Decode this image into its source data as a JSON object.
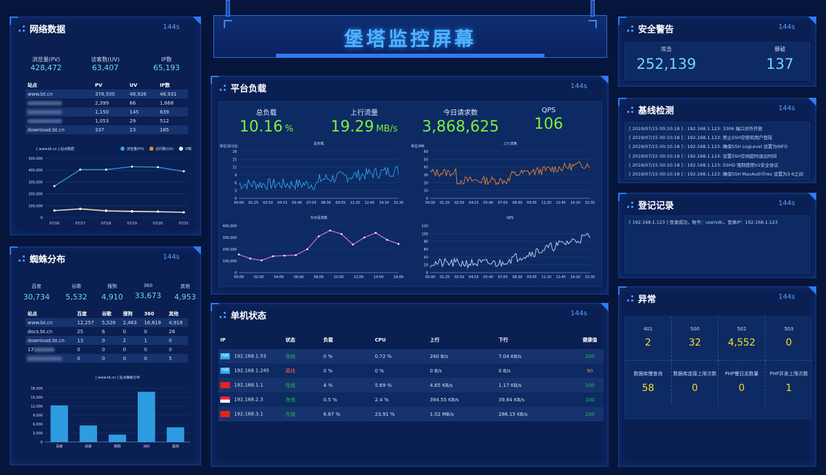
{
  "title": "堡塔监控屏幕",
  "network": {
    "title": "网络数据",
    "ago": "144s",
    "stats": [
      {
        "label": "浏览量(PV)",
        "value": "428,472"
      },
      {
        "label": "访客数(UV)",
        "value": "63,407"
      },
      {
        "label": "IP数",
        "value": "65,193"
      }
    ],
    "headers": [
      "站点",
      "PV",
      "UV",
      "IP数"
    ],
    "rows": [
      [
        "www.bt.cn",
        "378,500",
        "48,926",
        "46,931"
      ],
      [
        "",
        "2,399",
        "66",
        "1,668"
      ],
      [
        "",
        "1,150",
        "145",
        "839"
      ],
      [
        "",
        "1,053",
        "29",
        "512"
      ],
      [
        "download.bt.cn",
        "337",
        "23",
        "185"
      ]
    ],
    "chart_title": "[ www.bt.cn ] 站点数据",
    "legend": [
      "浏览量(PV)",
      "访问数(UV)",
      "IP数"
    ],
    "yticks": [
      "500,000",
      "400,000",
      "300,000",
      "200,000",
      "100,000",
      "0"
    ],
    "xticks": [
      "07/16",
      "07/17",
      "07/18",
      "07/19",
      "07/20",
      "07/21"
    ]
  },
  "spider": {
    "title": "蜘蛛分布",
    "ago": "144s",
    "stats": [
      {
        "label": "百度",
        "value": "30,734"
      },
      {
        "label": "谷歌",
        "value": "5,532"
      },
      {
        "label": "搜狗",
        "value": "4,910"
      },
      {
        "label": "360",
        "value": "33,673"
      },
      {
        "label": "其他",
        "value": "4,953"
      }
    ],
    "headers": [
      "站点",
      "百度",
      "谷歌",
      "搜狗",
      "360",
      "其他"
    ],
    "rows": [
      [
        "www.bt.cn",
        "12,257",
        "5,526",
        "2,463",
        "16,819",
        "4,918"
      ],
      [
        "docs.bt.cn",
        "25",
        "6",
        "0",
        "0",
        "28"
      ],
      [
        "download.bt.cn",
        "13",
        "0",
        "2",
        "1",
        "0"
      ],
      [
        "17",
        "0",
        "0",
        "0",
        "0",
        "0"
      ],
      [
        "",
        "0",
        "0",
        "0",
        "0",
        "5"
      ]
    ],
    "chart_title": "[ www.bt.cn ] 站点蜘蛛分布",
    "yticks": [
      "18,000",
      "15,000",
      "12,000",
      "9,000",
      "6,000",
      "3,000",
      "0"
    ],
    "categories": [
      "百度",
      "谷歌",
      "搜狗",
      "360",
      "其他"
    ]
  },
  "load": {
    "title": "平台负载",
    "ago": "144s",
    "stats": [
      {
        "label": "总负载",
        "value": "10.16",
        "unit": "%"
      },
      {
        "label": "上行流量",
        "value": "19.29",
        "unit": "MB/s"
      },
      {
        "label": "今日请求数",
        "value": "3,868,625",
        "unit": ""
      },
      {
        "label": "QPS",
        "value": "106",
        "unit": ""
      }
    ],
    "c1": {
      "title": "总负载",
      "unit": "单位/百分比",
      "yticks": [
        "18",
        "15",
        "12",
        "9",
        "6",
        "3",
        "0"
      ]
    },
    "c2": {
      "title": "上行流量",
      "unit": "单位/MB",
      "yticks": [
        "60",
        "50",
        "40",
        "30",
        "20",
        "10",
        "0"
      ]
    },
    "c3": {
      "title": "今日请求数",
      "yticks": [
        "400,000",
        "300,000",
        "200,000",
        "100,000",
        "0"
      ],
      "xticks": [
        "00:00",
        "02:00",
        "04:00",
        "06:00",
        "08:00",
        "10:00",
        "12:00",
        "14:00",
        "16:00"
      ]
    },
    "c4": {
      "title": "QPS",
      "yticks": [
        "120",
        "100",
        "80",
        "60",
        "40",
        "20",
        "0"
      ]
    },
    "time_ticks": [
      "00:00",
      "01:25",
      "02:50",
      "04:15",
      "05:40",
      "07:05",
      "08:30",
      "09:55",
      "11:20",
      "12:45",
      "14:10",
      "15:35"
    ]
  },
  "machines": {
    "title": "单机状态",
    "ago": "144s",
    "headers": [
      "IP",
      "状态",
      "负载",
      "CPU",
      "上行",
      "下行",
      "健康值"
    ],
    "rows": [
      {
        "flag": "内网",
        "ip": "192.168.1.53",
        "status": "在线",
        "load": "0 %",
        "cpu": "0.72 %",
        "up": "240 B/s",
        "down": "7.04 KB/s",
        "health": "100"
      },
      {
        "flag": "内网",
        "ip": "192.168.1.245",
        "status": "离线",
        "load": "0 %",
        "cpu": "0 %",
        "up": "0 B/s",
        "down": "0 B/s",
        "health": "90"
      },
      {
        "flag": "",
        "ip": "192.168.1.1",
        "status": "在线",
        "load": "4 %",
        "cpu": "5.69 %",
        "up": "4.65 KB/s",
        "down": "1.17 KB/s",
        "health": "100"
      },
      {
        "flag": "",
        "ip": "192.168.2.3",
        "status": "在线",
        "load": "0.5 %",
        "cpu": "2.4 %",
        "up": "394.55 KB/s",
        "down": "39.84 KB/s",
        "health": "100"
      },
      {
        "flag": "",
        "ip": "192.168.3.1",
        "status": "在线",
        "load": "6.87 %",
        "cpu": "23.91 %",
        "up": "1.02 MB/s",
        "down": "286.15 KB/s",
        "health": "100"
      }
    ]
  },
  "security": {
    "title": "安全警告",
    "ago": "144s",
    "stats": [
      {
        "label": "攻击",
        "value": "252,139"
      },
      {
        "label": "暴破",
        "value": "137"
      }
    ]
  },
  "baseline": {
    "title": "基线检测",
    "ago": "144s",
    "logs": [
      "[ 2019/07/15 00:10:18 ] : 192.168.1.123: 3306 端口对外开放",
      "[ 2019/07/15 00:10:18 ] : 192.168.1.123: 禁止SSH空密码用户登陆",
      "[ 2019/07/15 00:10:18 ] : 192.168.1.123: 确保SSH LogLevel 设置为INFO",
      "[ 2019/07/15 00:10:18 ] : 192.168.1.123: 设置SSH空闲超时退出时间",
      "[ 2019/07/15 00:10:18 ] : 192.168.1.123: SSHD 强制使用V2安全协议",
      "[ 2019/07/15 00:10:18 ] : 192.168.1.123: 确保SSH MaxAuthTries 设置为3-6之间"
    ]
  },
  "login": {
    "title": "登记记录",
    "ago": "144s",
    "logs": [
      "[ 192.168.1.123 ] 登录成功，账号：uservdc，登录IP：192.168.1.123"
    ]
  },
  "abnormal": {
    "title": "异常",
    "ago": "144s",
    "cells": [
      {
        "label": "401",
        "value": "2"
      },
      {
        "label": "500",
        "value": "32"
      },
      {
        "label": "502",
        "value": "4,552"
      },
      {
        "label": "503",
        "value": "0"
      },
      {
        "label": "数据库慢查询",
        "value": "58"
      },
      {
        "label": "数据库连接上限次数",
        "value": "0"
      },
      {
        "label": "PHP慢日志数量",
        "value": "0"
      },
      {
        "label": "PHP并发上限次数",
        "value": "1"
      }
    ]
  },
  "colors": {
    "pv": "#2ea8e8",
    "uv": "#f0862a",
    "ip": "#d9f0ff",
    "green": "#7cf03c",
    "cyan": "#6fd6ff",
    "yellow": "#f5e02a",
    "offline": "#ff5b4e",
    "online": "#27c54a"
  }
}
